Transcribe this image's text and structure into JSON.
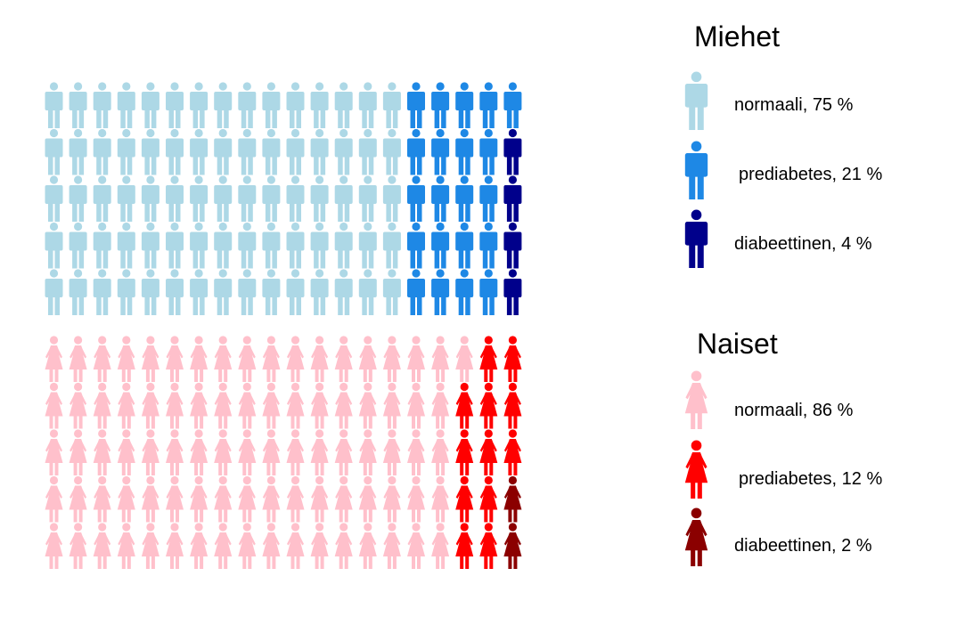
{
  "chart_data": [
    {
      "type": "waffle",
      "title": "Miehet",
      "icon": "male-person-icon",
      "units": 100,
      "series": [
        {
          "name": "normaali, 75 %",
          "value": 75,
          "color": "#ADD8E6"
        },
        {
          "name": "prediabetes, 21 %",
          "value": 21,
          "color": "#1E88E5"
        },
        {
          "name": "diabeettinen, 4 %",
          "value": 4,
          "color": "#00008B"
        }
      ]
    },
    {
      "type": "waffle",
      "title": "Naiset",
      "icon": "female-person-icon",
      "units": 100,
      "series": [
        {
          "name": "normaali, 86 %",
          "value": 86,
          "color": "#FFC0CB"
        },
        {
          "name": "prediabetes, 12 %",
          "value": 12,
          "color": "#FF0000"
        },
        {
          "name": "diabeettinen, 2 %",
          "value": 2,
          "color": "#8B0000"
        }
      ]
    }
  ]
}
